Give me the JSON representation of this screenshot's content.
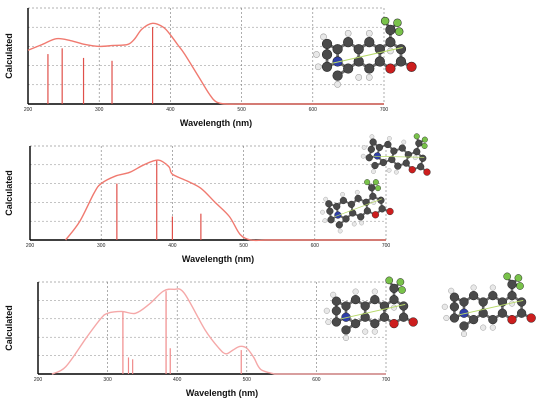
{
  "chart_data": [
    {
      "type": "line",
      "title": "",
      "xlabel": "Wavelength (nm)",
      "ylabel": "Calculated",
      "xlim": [
        200,
        700
      ],
      "xticks": [
        "200",
        "300",
        "400",
        "500",
        "600",
        "700"
      ],
      "grid": true,
      "series": [
        {
          "kind": "spectrum",
          "x": [
            200,
            220,
            240,
            260,
            280,
            300,
            320,
            340,
            350,
            360,
            375,
            390,
            400,
            410,
            420,
            440,
            455,
            465,
            480,
            500,
            520
          ],
          "values": [
            0.56,
            0.62,
            0.68,
            0.66,
            0.62,
            0.6,
            0.61,
            0.62,
            0.68,
            0.78,
            0.84,
            0.8,
            0.72,
            0.62,
            0.52,
            0.28,
            0.1,
            0.02,
            0.0,
            0.0,
            0.0
          ]
        }
      ],
      "sticks": {
        "x": [
          228,
          248,
          278,
          318,
          375
        ],
        "values": [
          0.52,
          0.58,
          0.48,
          0.45,
          0.8
        ]
      },
      "colors": {
        "curve": "#f07a70",
        "sticks": "#e0504a"
      }
    },
    {
      "type": "line",
      "title": "",
      "xlabel": "Wavelength (nm)",
      "ylabel": "Calculated",
      "xlim": [
        200,
        700
      ],
      "xticks": [
        "200",
        "300",
        "400",
        "500",
        "600",
        "700"
      ],
      "grid": true,
      "series": [
        {
          "kind": "spectrum",
          "x": [
            250,
            270,
            290,
            300,
            320,
            340,
            360,
            380,
            395,
            400,
            420,
            440,
            460,
            480,
            495,
            510,
            530
          ],
          "values": [
            0.0,
            0.2,
            0.5,
            0.6,
            0.68,
            0.72,
            0.8,
            0.85,
            0.78,
            0.7,
            0.63,
            0.55,
            0.4,
            0.25,
            0.06,
            0.0,
            0.0
          ]
        }
      ],
      "sticks": {
        "x": [
          322,
          378,
          400,
          440
        ],
        "values": [
          0.6,
          0.85,
          0.25,
          0.28
        ]
      },
      "colors": {
        "curve": "#f07a70",
        "sticks": "#e0504a"
      }
    },
    {
      "type": "line",
      "title": "",
      "xlabel": "Wavelength (nm)",
      "ylabel": "Calculated",
      "xlim": [
        200,
        700
      ],
      "xticks": [
        "200",
        "300",
        "400",
        "500",
        "600",
        "700"
      ],
      "grid": true,
      "series": [
        {
          "kind": "spectrum",
          "x": [
            220,
            240,
            270,
            290,
            300,
            320,
            340,
            360,
            380,
            395,
            410,
            440,
            460,
            470,
            480,
            490,
            500,
            510,
            520,
            540
          ],
          "values": [
            0.0,
            0.08,
            0.4,
            0.6,
            0.66,
            0.68,
            0.66,
            0.76,
            0.9,
            0.92,
            0.88,
            0.48,
            0.28,
            0.22,
            0.26,
            0.3,
            0.28,
            0.18,
            0.05,
            0.0
          ]
        }
      ],
      "sticks": {
        "x": [
          322,
          330,
          336,
          384,
          390,
          492
        ],
        "values": [
          0.68,
          0.18,
          0.16,
          0.9,
          0.28,
          0.26
        ]
      },
      "colors": {
        "curve": "#f5a8a8",
        "sticks": "#f08a8a"
      }
    }
  ],
  "molecule_images": [
    {
      "icon": "coumarin-ball-and-stick-model",
      "elements": [
        "carbon",
        "hydrogen",
        "nitrogen",
        "oxygen",
        "fluorine"
      ]
    },
    {
      "icon": "coumarin-dimer-ball-and-stick-model",
      "elements": [
        "carbon",
        "hydrogen",
        "nitrogen",
        "oxygen",
        "fluorine"
      ]
    },
    {
      "icon": "coumarin-pair-ball-and-stick-model",
      "elements": [
        "carbon",
        "hydrogen",
        "nitrogen",
        "oxygen",
        "fluorine"
      ]
    }
  ]
}
